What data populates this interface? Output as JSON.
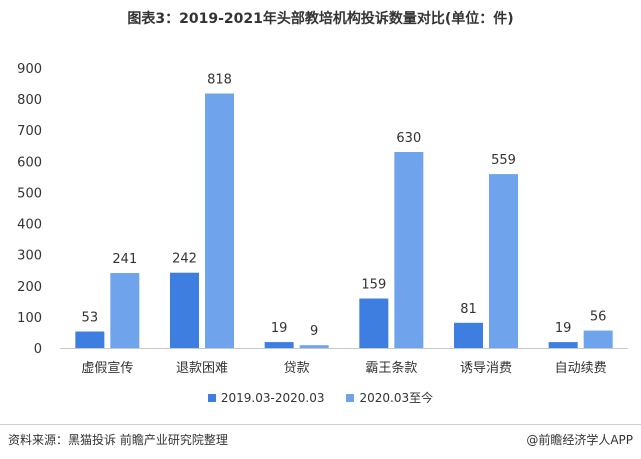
{
  "chart_data": {
    "type": "bar",
    "title": "图表3：2019-2021年头部教培机构投诉数量对比(单位：件)",
    "categories": [
      "虚假宣传",
      "退款困难",
      "贷款",
      "霸王条款",
      "诱导消费",
      "自动续费"
    ],
    "series": [
      {
        "name": "2019.03-2020.03",
        "values": [
          53,
          242,
          19,
          159,
          81,
          19
        ],
        "color": "#3d7ee0"
      },
      {
        "name": "2020.03至今",
        "values": [
          241,
          818,
          9,
          630,
          559,
          56
        ],
        "color": "#6fa3ec"
      }
    ],
    "ylim": [
      0,
      900
    ],
    "yticks": [
      0,
      100,
      200,
      300,
      400,
      500,
      600,
      700,
      800,
      900
    ],
    "grid": false,
    "legend_position": "bottom"
  },
  "footer": {
    "source": "资料来源：黑猫投诉 前瞻产业研究院整理",
    "brand": "@前瞻经济学人APP"
  }
}
